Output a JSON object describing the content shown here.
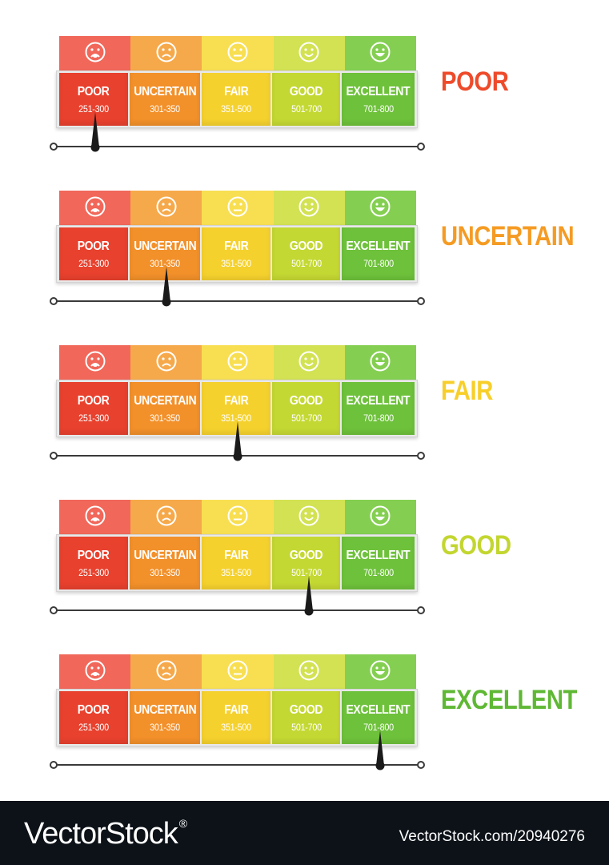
{
  "colors": {
    "poor": "#e8412e",
    "uncertain": "#f2902a",
    "fair": "#f5d12e",
    "good": "#c4d833",
    "excellent": "#6ec13b",
    "rating_poor": "#ee4b2b",
    "rating_uncertain": "#f59b23",
    "rating_fair": "#f8cf2a",
    "rating_good": "#c3d630",
    "rating_excellent": "#5fb834"
  },
  "categories": [
    {
      "name": "POOR",
      "range": "251-300",
      "icon": "sad-face-icon",
      "color": "#e8412e",
      "face": "#f1675a"
    },
    {
      "name": "UNCERTAIN",
      "range": "301-350",
      "icon": "frown-face-icon",
      "color": "#f2902a",
      "face": "#f6a94a"
    },
    {
      "name": "FAIR",
      "range": "351-500",
      "icon": "neutral-face-icon",
      "color": "#f5d12e",
      "face": "#f8df52"
    },
    {
      "name": "GOOD",
      "range": "501-700",
      "icon": "smile-face-icon",
      "color": "#c4d833",
      "face": "#d2e253"
    },
    {
      "name": "EXCELLENT",
      "range": "701-800",
      "icon": "happy-face-icon",
      "color": "#6ec13b",
      "face": "#84cf51"
    }
  ],
  "gauges": [
    {
      "rating": "POOR",
      "needle_category_index": 0,
      "rating_color": "#ee4b2b"
    },
    {
      "rating": "UNCERTAIN",
      "needle_category_index": 1,
      "rating_color": "#f59b23"
    },
    {
      "rating": "FAIR",
      "needle_category_index": 2,
      "rating_color": "#f8cf2a"
    },
    {
      "rating": "GOOD",
      "needle_category_index": 3,
      "rating_color": "#c3d630"
    },
    {
      "rating": "EXCELLENT",
      "needle_category_index": 4,
      "rating_color": "#5fb834"
    }
  ],
  "footer": {
    "brand": "VectorStock",
    "brand_mark": "®",
    "image_id": "VectorStock.com/20940276"
  }
}
